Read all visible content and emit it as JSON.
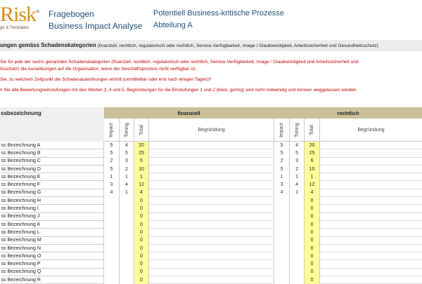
{
  "logo": {
    "text": "Risk",
    "sub": "ge & Templates"
  },
  "header": {
    "title1": "Fragebogen",
    "title2": "Business Impact Analyse",
    "subtitle1": "Potentiell Business-kritische Prozesse",
    "subtitle2": "Abteilung A"
  },
  "band": {
    "bold": "ungen gemäss Schadenskategorien",
    "rest": " (finanziell, rechtlich, regulatorisch oder rechtlich, Service-Verfügbarkeit, Image / Glaubwürdigkeit, Arbeitssicherheit und Gesundheitsschutz)"
  },
  "instructions": [
    "Sie für jede der sechs genannten Schadenskategorien (finanziell, rechtlich, regulatorisch oder rechtlich, Service-Verfügbarkeit, Image / Glaubwürdigkeit und Arbeitssicherheit und",
    "itsschutz) die Auswirkungen auf die Organisation, wenn der Geschäftsprozess nicht verfügbar ist.",
    "Sie, zu welchem Zeitpunkt die Schadesauswirkungen eintritt (unmittelbar oder erst nach einigen Tagen)?",
    "n Sie alle Bewertungseinstufungen mit den Werten 3, 4 und 5. Begründungen für die Einstufungen 1 und 2 (klein, gering) sind nicht notwendig und können weggelassen werden."
  ],
  "table": {
    "name_header": "ssbezeichnung",
    "groups": [
      "finanziell",
      "rechtlich"
    ],
    "subheaders": {
      "impact": "Impact",
      "timing": "Timing",
      "total": "Total",
      "reason": "Begründung"
    },
    "rows": [
      {
        "name": "ss Bezeichnung A",
        "impact": "5",
        "timing": "4",
        "total": "20"
      },
      {
        "name": "ss Bezeichnung B",
        "impact": "5",
        "timing": "5",
        "total": "25"
      },
      {
        "name": "ss Bezeichnung C",
        "impact": "2",
        "timing": "3",
        "total": "6"
      },
      {
        "name": "ss Bezeichnung D",
        "impact": "5",
        "timing": "2",
        "total": "10"
      },
      {
        "name": "ss Bezeichnung E",
        "impact": "1",
        "timing": "1",
        "total": "1"
      },
      {
        "name": "ss Bezeichnung F",
        "impact": "3",
        "timing": "4",
        "total": "12"
      },
      {
        "name": "ss Bezeichnung G",
        "impact": "4",
        "timing": "1",
        "total": "4"
      },
      {
        "name": "ss Bezeichnung H",
        "impact": "",
        "timing": "",
        "total": "0"
      },
      {
        "name": "ss Bezeichnung I",
        "impact": "",
        "timing": "",
        "total": "0"
      },
      {
        "name": "ss Bezeichnung J",
        "impact": "",
        "timing": "",
        "total": "0"
      },
      {
        "name": "ss Bezeichnung K",
        "impact": "",
        "timing": "",
        "total": "0"
      },
      {
        "name": "ss Bezeichnung L",
        "impact": "",
        "timing": "",
        "total": "0"
      },
      {
        "name": "ss Bezeichnung M",
        "impact": "",
        "timing": "",
        "total": "0"
      },
      {
        "name": "ss Bezeichnung N",
        "impact": "",
        "timing": "",
        "total": "0"
      },
      {
        "name": "ss Bezeichnung O",
        "impact": "",
        "timing": "",
        "total": "0"
      },
      {
        "name": "ss Bezeichnung P",
        "impact": "",
        "timing": "",
        "total": "0"
      },
      {
        "name": "ss Bezeichnung Q",
        "impact": "",
        "timing": "",
        "total": "0"
      },
      {
        "name": "ss Bezeichnung R",
        "impact": "",
        "timing": "",
        "total": "0"
      }
    ]
  },
  "colors": {
    "header_tan": "#c9c09a",
    "total_yellow": "#ffff99",
    "instruction_red": "#c00000",
    "title_blue": "#1f4e79"
  }
}
